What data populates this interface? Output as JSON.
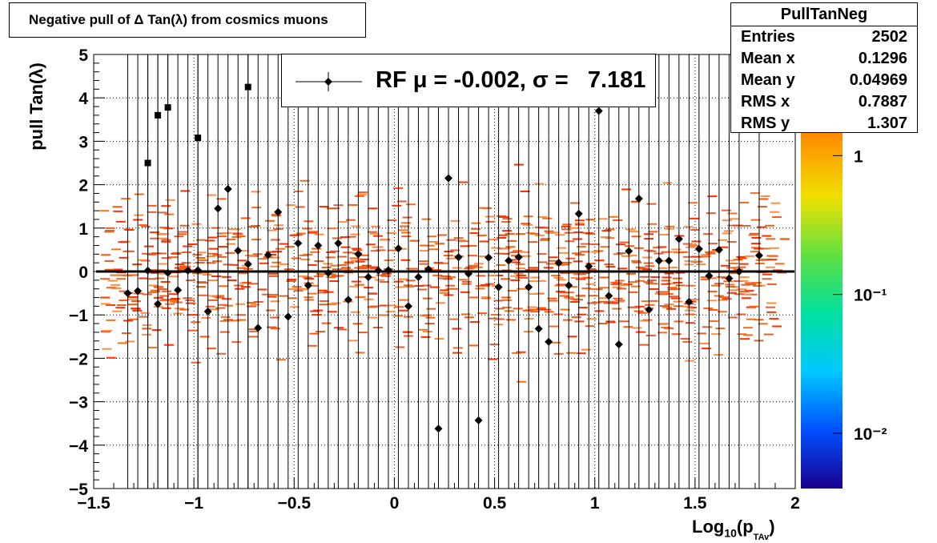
{
  "title": "Negative pull of Δ Tan(λ) from cosmics muons",
  "stats": {
    "name": "PullTanNeg",
    "rows": [
      {
        "label": "Entries",
        "value": "2502"
      },
      {
        "label": "Mean x",
        "value": "0.1296"
      },
      {
        "label": "Mean y",
        "value": "0.04969"
      },
      {
        "label": "RMS x",
        "value": "0.7887"
      },
      {
        "label": "RMS y",
        "value": "1.307"
      }
    ]
  },
  "legend": {
    "label": "RF μ = -0.002, σ =   7.181",
    "marker": "diamond",
    "color": "#000000"
  },
  "axes": {
    "ylabel": "pull Tan(λ)",
    "xlabel_main": "Log",
    "xlabel_sub": "10",
    "xlabel_rest": "(p",
    "xlabel_sub2": "TAv",
    "xlabel_end": ")"
  },
  "colorbar": {
    "labels": [
      "1",
      "10⁻¹",
      "10⁻²"
    ],
    "values": [
      1,
      0.1,
      0.01
    ],
    "range": [
      0.004,
      3.5
    ],
    "scale": "log",
    "colors": [
      "#1a0090",
      "#0050ff",
      "#00c8ff",
      "#00e0a0",
      "#60e040",
      "#f0e000",
      "#ff9000",
      "#ff3000"
    ]
  },
  "chart_data": {
    "type": "scatter",
    "title": "Negative pull of Δ Tan(λ) from cosmics muons",
    "xlabel": "Log10(pTAv)",
    "ylabel": "pull Tan(λ)",
    "xlim": [
      -1.5,
      2
    ],
    "ylim": [
      -5,
      5
    ],
    "xticks": [
      -1.5,
      -1,
      -0.5,
      0,
      0.5,
      1,
      1.5,
      2
    ],
    "xtick_labels": [
      "−1.5",
      "−1",
      "−0.5",
      "0",
      "0.5",
      "1",
      "1.5",
      "2"
    ],
    "yticks": [
      -5,
      -4,
      -3,
      -2,
      -1,
      0,
      1,
      2,
      3,
      4,
      5
    ],
    "ytick_labels": [
      "−5",
      "−4",
      "−3",
      "−2",
      "−1",
      "0",
      "1",
      "2",
      "3",
      "4",
      "5"
    ],
    "grid": true,
    "reference_line_y": 0,
    "series": [
      {
        "name": "RF",
        "profile_x": [
          -1.33,
          -1.28,
          -1.23,
          -1.18,
          -1.13,
          -1.08,
          -1.03,
          -0.98,
          -0.93,
          -0.88,
          -0.83,
          -0.78,
          -0.73,
          -0.68,
          -0.63,
          -0.58,
          -0.53,
          -0.48,
          -0.43,
          -0.38,
          -0.33,
          -0.28,
          -0.23,
          -0.18,
          -0.13,
          -0.08,
          -0.03,
          0.02,
          0.07,
          0.12,
          0.17,
          0.22,
          0.27,
          0.32,
          0.37,
          0.42,
          0.47,
          0.52,
          0.57,
          0.62,
          0.67,
          0.72,
          0.77,
          0.82,
          0.87,
          0.92,
          0.97,
          1.02,
          1.07,
          1.12,
          1.17,
          1.22,
          1.27,
          1.32,
          1.37,
          1.42,
          1.47,
          1.52,
          1.57,
          1.62,
          1.67,
          1.72,
          1.82
        ],
        "profile_y": [
          -0.5,
          -0.45,
          0.02,
          -0.75,
          -0.03,
          -0.43,
          0.02,
          0.03,
          -0.92,
          1.45,
          1.9,
          0.48,
          0.17,
          -1.3,
          0.38,
          1.37,
          -1.04,
          0.65,
          -0.32,
          0.6,
          -0.03,
          0.65,
          -0.65,
          0.4,
          -0.13,
          0.02,
          0.03,
          0.53,
          -0.8,
          -0.13,
          0.05,
          -3.62,
          2.15,
          0.33,
          -0.05,
          -3.43,
          0.32,
          -0.36,
          0.25,
          0.33,
          -0.36,
          -1.32,
          -1.62,
          0.2,
          -0.32,
          1.33,
          0.12,
          3.7,
          -0.56,
          -1.68,
          0.47,
          1.68,
          -0.88,
          0.25,
          0.25,
          0.75,
          -0.7,
          0.52,
          -0.1,
          0.5,
          -0.16,
          0.0,
          0.37
        ],
        "overflow_x": [
          -1.23,
          -1.18,
          -1.13,
          -0.98,
          -0.73
        ],
        "overflow_y": [
          2.5,
          3.6,
          3.78,
          3.08,
          4.25
        ]
      }
    ]
  }
}
